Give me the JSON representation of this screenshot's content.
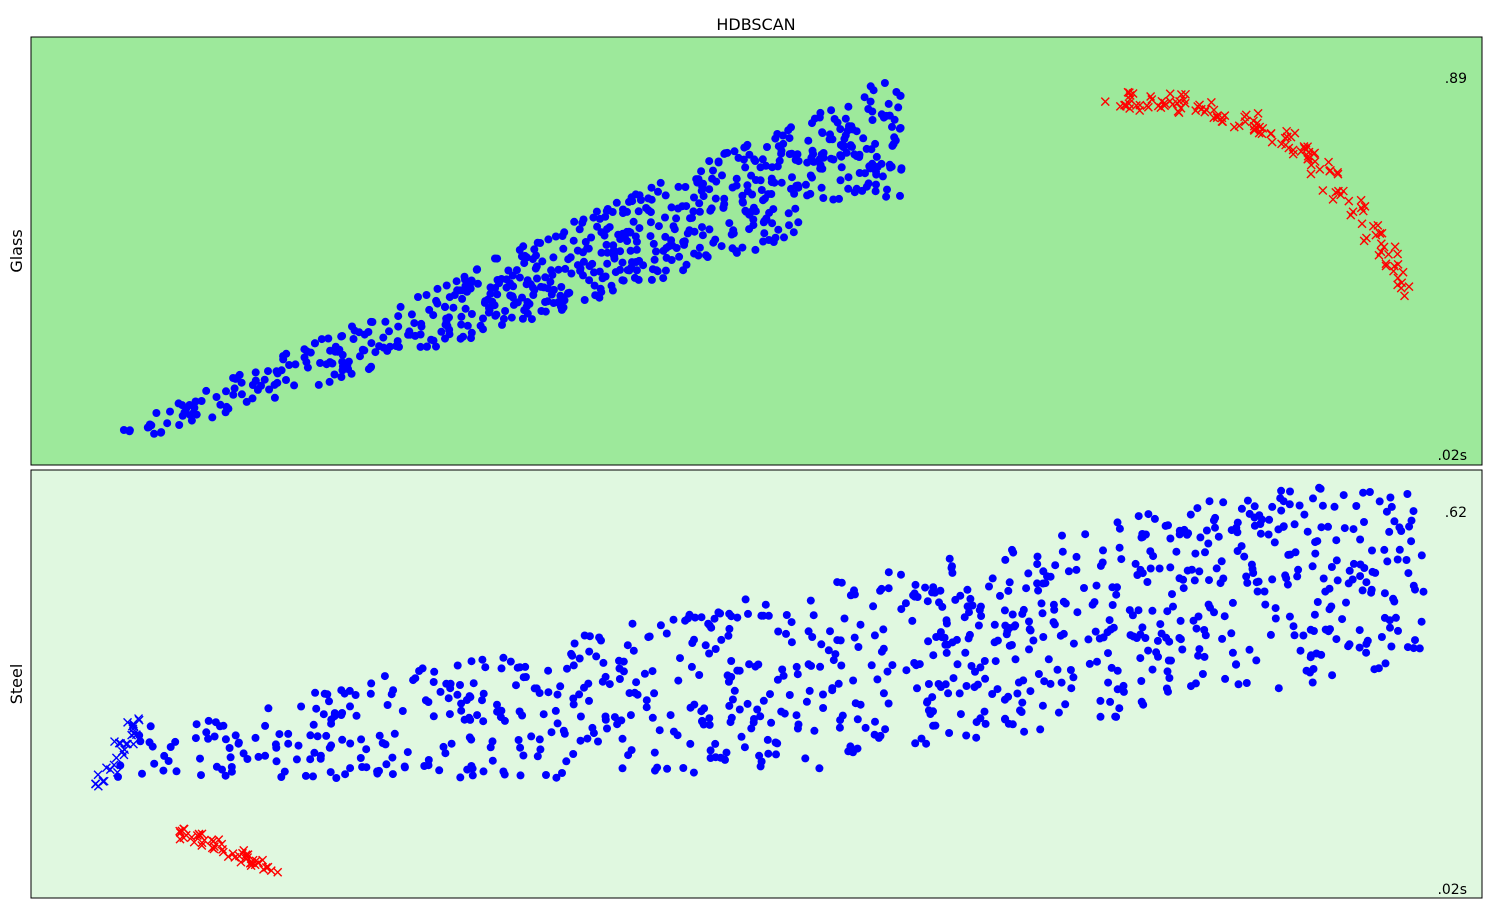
{
  "chart_data": {
    "title": "HDBSCAN",
    "type": "scatter",
    "panels": [
      {
        "ylabel": "Glass",
        "score": ".89",
        "time": ".02s",
        "background": "#9de99b",
        "grid": false,
        "clusters": [
          {
            "color": "#0000ff",
            "marker": "circle",
            "kind": "blob",
            "seed": 11,
            "count": 700,
            "region": {
              "x": [
                0.04,
                0.6
              ],
              "y": [
                0.02,
                0.93
              ]
            },
            "shape": "glass-main"
          },
          {
            "color": "#ff0000",
            "marker": "x",
            "kind": "arc",
            "seed": 23,
            "count": 140,
            "region": {
              "x": [
                0.74,
                0.95
              ],
              "y": [
                0.15,
                0.62
              ]
            },
            "shape": "glass-arc"
          }
        ]
      },
      {
        "ylabel": "Steel",
        "score": ".62",
        "time": ".02s",
        "background": "#e0f8e0",
        "grid": false,
        "clusters": [
          {
            "color": "#0000ff",
            "marker": "circle",
            "kind": "blob",
            "seed": 37,
            "count": 950,
            "region": {
              "x": [
                0.05,
                0.96
              ],
              "y": [
                0.04,
                0.72
              ]
            },
            "shape": "steel-main"
          },
          {
            "color": "#0000ff",
            "marker": "x",
            "kind": "tail",
            "seed": 41,
            "count": 30,
            "region": {
              "x": [
                0.045,
                0.09
              ],
              "y": [
                0.55,
                0.75
              ]
            },
            "shape": "steel-tail"
          },
          {
            "color": "#ff0000",
            "marker": "x",
            "kind": "tail",
            "seed": 53,
            "count": 50,
            "region": {
              "x": [
                0.1,
                0.18
              ],
              "y": [
                0.83,
                0.95
              ]
            },
            "shape": "steel-red"
          }
        ]
      }
    ]
  },
  "colors": {
    "frame": "#000000"
  }
}
